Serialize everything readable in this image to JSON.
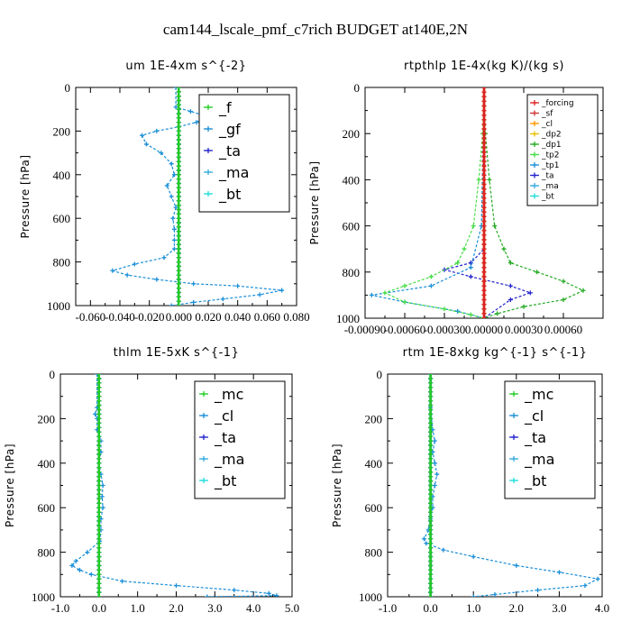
{
  "title": "cam144_lscale_pmf_c7rich  BUDGET at140E,2N",
  "chart_data": [
    {
      "type": "line",
      "title": "um   1E-4xm s^{-2}",
      "ylabel": "Pressure [hPa]",
      "xlim": [
        -0.07,
        0.08
      ],
      "ylim": [
        1000,
        0
      ],
      "xticks": [
        "-0.060",
        "-0.040",
        "-0.020",
        "0.000",
        "0.020",
        "0.040",
        "0.060",
        "0.080"
      ],
      "xtick_values": [
        -0.06,
        -0.04,
        -0.02,
        0.0,
        0.02,
        0.04,
        0.06,
        0.08
      ],
      "yticks": [
        "0",
        "200",
        "400",
        "600",
        "800",
        "1000"
      ],
      "ytick_values": [
        0,
        200,
        400,
        600,
        800,
        1000
      ],
      "legend_position": "upper-right",
      "legend_size": "large",
      "series": [
        {
          "name": "_f",
          "color": "#22cc22",
          "points": [
            [
              0.0,
              0
            ],
            [
              0.0,
              1000
            ]
          ]
        },
        {
          "name": "_gf",
          "color": "#1a8fd8",
          "points": [
            [
              -0.002,
              0
            ],
            [
              -0.002,
              90
            ],
            [
              0.008,
              110
            ],
            [
              0.018,
              130
            ],
            [
              0.012,
              160
            ],
            [
              0.0,
              180
            ],
            [
              -0.015,
              200
            ],
            [
              -0.025,
              220
            ],
            [
              -0.022,
              260
            ],
            [
              -0.012,
              300
            ],
            [
              -0.005,
              350
            ],
            [
              -0.003,
              400
            ],
            [
              -0.008,
              450
            ],
            [
              -0.005,
              500
            ],
            [
              -0.002,
              550
            ],
            [
              -0.004,
              600
            ],
            [
              -0.003,
              650
            ],
            [
              -0.003,
              700
            ],
            [
              -0.003,
              740
            ],
            [
              -0.01,
              780
            ],
            [
              -0.03,
              810
            ],
            [
              -0.045,
              840
            ],
            [
              -0.035,
              860
            ],
            [
              -0.015,
              880
            ],
            [
              0.01,
              900
            ],
            [
              0.04,
              910
            ],
            [
              0.07,
              930
            ],
            [
              0.055,
              950
            ],
            [
              0.03,
              970
            ],
            [
              0.01,
              985
            ],
            [
              -0.005,
              1000
            ]
          ]
        },
        {
          "name": "_ta",
          "color": "#2222cc",
          "points": [
            [
              0.0,
              0
            ],
            [
              0.0,
              1000
            ]
          ]
        },
        {
          "name": "_ma",
          "color": "#33aadd",
          "points": [
            [
              0.0,
              0
            ],
            [
              0.0,
              1000
            ]
          ]
        },
        {
          "name": "_bt",
          "color": "#22dddd",
          "points": [
            [
              0.0,
              0
            ],
            [
              0.0,
              1000
            ]
          ]
        }
      ]
    },
    {
      "type": "line",
      "title": "rtpthlp   1E-4x(kg K)/(kg s)",
      "ylabel": "Pressure [hPa]",
      "xlim": [
        -0.0009,
        0.0009
      ],
      "ylim": [
        1000,
        0
      ],
      "xticks": [
        "-0.00090",
        "-0.00060",
        "-0.00030",
        "0.00000",
        "0.00030",
        "0.00060"
      ],
      "xtick_values": [
        -0.0009,
        -0.0006,
        -0.0003,
        0.0,
        0.0003,
        0.0006
      ],
      "yticks": [
        "0",
        "200",
        "400",
        "600",
        "800",
        "1000"
      ],
      "ytick_values": [
        0,
        200,
        400,
        600,
        800,
        1000
      ],
      "legend_position": "upper-right",
      "legend_size": "small",
      "series": [
        {
          "name": "_forcing",
          "color": "#dd2222",
          "points": [
            [
              0.0,
              0
            ],
            [
              0.0,
              1000
            ]
          ]
        },
        {
          "name": "_sf",
          "color": "#cc3333",
          "points": [
            [
              0.0,
              0
            ],
            [
              0.0,
              1000
            ]
          ]
        },
        {
          "name": "_cl",
          "color": "#ff9900",
          "points": [
            [
              0.0,
              0
            ],
            [
              0.0,
              1000
            ]
          ]
        },
        {
          "name": "_dp2",
          "color": "#e6c000",
          "points": [
            [
              0.0,
              0
            ],
            [
              0.0,
              1000
            ]
          ]
        },
        {
          "name": "_dp1",
          "color": "#22aa22",
          "points": [
            [
              0.0,
              0
            ],
            [
              1e-05,
              200
            ],
            [
              4e-05,
              400
            ],
            [
              8e-05,
              600
            ],
            [
              0.00015,
              700
            ],
            [
              0.0002,
              760
            ],
            [
              0.0004,
              800
            ],
            [
              0.0006,
              840
            ],
            [
              0.00075,
              880
            ],
            [
              0.0006,
              920
            ],
            [
              0.0003,
              950
            ],
            [
              0.0001,
              980
            ],
            [
              0.0,
              1000
            ]
          ]
        },
        {
          "name": "_tp2",
          "color": "#44dd44",
          "points": [
            [
              0.0,
              0
            ],
            [
              -1e-05,
              200
            ],
            [
              -4e-05,
              400
            ],
            [
              -8e-05,
              600
            ],
            [
              -0.00015,
              700
            ],
            [
              -0.0002,
              760
            ],
            [
              -0.0004,
              820
            ],
            [
              -0.0006,
              860
            ],
            [
              -0.00075,
              890
            ],
            [
              -0.0006,
              930
            ],
            [
              -0.0003,
              960
            ],
            [
              -0.0001,
              985
            ],
            [
              0.0,
              1000
            ]
          ]
        },
        {
          "name": "_tp1",
          "color": "#1a8fd8",
          "points": [
            [
              0.0,
              0
            ],
            [
              -2e-05,
              600
            ],
            [
              -0.0001,
              780
            ],
            [
              -0.0004,
              860
            ],
            [
              -0.00085,
              900
            ],
            [
              -0.0006,
              930
            ],
            [
              -0.0002,
              970
            ],
            [
              0.0,
              1000
            ]
          ]
        },
        {
          "name": "_ta",
          "color": "#2222cc",
          "points": [
            [
              0.0,
              0
            ],
            [
              0.0,
              700
            ],
            [
              -0.0001,
              760
            ],
            [
              -0.0003,
              790
            ],
            [
              -0.0001,
              820
            ],
            [
              0.0002,
              860
            ],
            [
              0.00035,
              890
            ],
            [
              0.0002,
              920
            ],
            [
              0.0,
              1000
            ]
          ]
        },
        {
          "name": "_ma",
          "color": "#33aadd",
          "points": [
            [
              0.0,
              0
            ],
            [
              0.0,
              1000
            ]
          ]
        },
        {
          "name": "_bt",
          "color": "#22dddd",
          "points": [
            [
              0.0,
              0
            ],
            [
              0.0,
              1000
            ]
          ]
        }
      ]
    },
    {
      "type": "line",
      "title": "thlm   1E-5xK s^{-1}",
      "ylabel": "Pressure [hPa]",
      "xlim": [
        -1.0,
        5.0
      ],
      "ylim": [
        1000,
        0
      ],
      "xticks": [
        "-1.0",
        "0.0",
        "1.0",
        "2.0",
        "3.0",
        "4.0",
        "5.0"
      ],
      "xtick_values": [
        -1.0,
        0.0,
        1.0,
        2.0,
        3.0,
        4.0,
        5.0
      ],
      "yticks": [
        "0",
        "200",
        "400",
        "600",
        "800",
        "1000"
      ],
      "ytick_values": [
        0,
        200,
        400,
        600,
        800,
        1000
      ],
      "legend_position": "upper-right",
      "legend_size": "large",
      "series": [
        {
          "name": "_mc",
          "color": "#22cc22",
          "points": [
            [
              0.0,
              0
            ],
            [
              0.0,
              1000
            ]
          ]
        },
        {
          "name": "_cl",
          "color": "#1a8fd8",
          "points": [
            [
              -0.05,
              0
            ],
            [
              -0.05,
              150
            ],
            [
              -0.1,
              180
            ],
            [
              -0.05,
              200
            ],
            [
              -0.05,
              250
            ],
            [
              0.05,
              300
            ],
            [
              0.05,
              350
            ],
            [
              0.0,
              400
            ],
            [
              0.05,
              450
            ],
            [
              0.1,
              500
            ],
            [
              0.08,
              550
            ],
            [
              0.1,
              600
            ],
            [
              0.05,
              650
            ],
            [
              0.05,
              700
            ],
            [
              0.02,
              750
            ],
            [
              -0.3,
              800
            ],
            [
              -0.6,
              840
            ],
            [
              -0.7,
              860
            ],
            [
              -0.5,
              880
            ],
            [
              -0.2,
              900
            ],
            [
              0.6,
              930
            ],
            [
              2.0,
              950
            ],
            [
              3.5,
              970
            ],
            [
              4.4,
              985
            ],
            [
              4.6,
              995
            ],
            [
              2.8,
              1000
            ]
          ]
        },
        {
          "name": "_ta",
          "color": "#2222cc",
          "points": [
            [
              0.0,
              0
            ],
            [
              0.0,
              1000
            ]
          ]
        },
        {
          "name": "_ma",
          "color": "#33aadd",
          "points": [
            [
              0.0,
              0
            ],
            [
              0.0,
              1000
            ]
          ]
        },
        {
          "name": "_bt",
          "color": "#22dddd",
          "points": [
            [
              0.0,
              0
            ],
            [
              0.0,
              1000
            ]
          ]
        }
      ]
    },
    {
      "type": "line",
      "title": "rtm   1E-8xkg kg^{-1} s^{-1}",
      "ylabel": "Pressure [hPa]",
      "xlim": [
        -1.0,
        4.0
      ],
      "ylim": [
        1000,
        0
      ],
      "xticks": [
        "-1.0",
        "0.0",
        "1.0",
        "2.0",
        "3.0",
        "4.0"
      ],
      "xtick_values": [
        -1.0,
        0.0,
        1.0,
        2.0,
        3.0,
        4.0
      ],
      "yticks": [
        "0",
        "200",
        "400",
        "600",
        "800",
        "1000"
      ],
      "ytick_values": [
        0,
        200,
        400,
        600,
        800,
        1000
      ],
      "legend_position": "upper-right",
      "legend_size": "large",
      "series": [
        {
          "name": "_mc",
          "color": "#22cc22",
          "points": [
            [
              0.0,
              0
            ],
            [
              0.0,
              1000
            ]
          ]
        },
        {
          "name": "_cl",
          "color": "#1a8fd8",
          "points": [
            [
              0.0,
              0
            ],
            [
              0.0,
              150
            ],
            [
              0.05,
              250
            ],
            [
              0.1,
              300
            ],
            [
              0.05,
              350
            ],
            [
              0.1,
              400
            ],
            [
              0.15,
              450
            ],
            [
              0.1,
              500
            ],
            [
              0.05,
              550
            ],
            [
              0.05,
              600
            ],
            [
              0.0,
              650
            ],
            [
              -0.05,
              700
            ],
            [
              -0.15,
              740
            ],
            [
              -0.1,
              760
            ],
            [
              0.3,
              790
            ],
            [
              1.0,
              820
            ],
            [
              2.0,
              860
            ],
            [
              3.0,
              890
            ],
            [
              3.9,
              920
            ],
            [
              3.6,
              950
            ],
            [
              2.5,
              970
            ],
            [
              1.5,
              990
            ],
            [
              1.0,
              1000
            ]
          ]
        },
        {
          "name": "_ta",
          "color": "#2222cc",
          "points": [
            [
              0.0,
              0
            ],
            [
              0.0,
              1000
            ]
          ]
        },
        {
          "name": "_ma",
          "color": "#33aadd",
          "points": [
            [
              0.0,
              0
            ],
            [
              0.0,
              1000
            ]
          ]
        },
        {
          "name": "_bt",
          "color": "#22dddd",
          "points": [
            [
              0.0,
              0
            ],
            [
              0.0,
              1000
            ]
          ]
        }
      ]
    }
  ]
}
